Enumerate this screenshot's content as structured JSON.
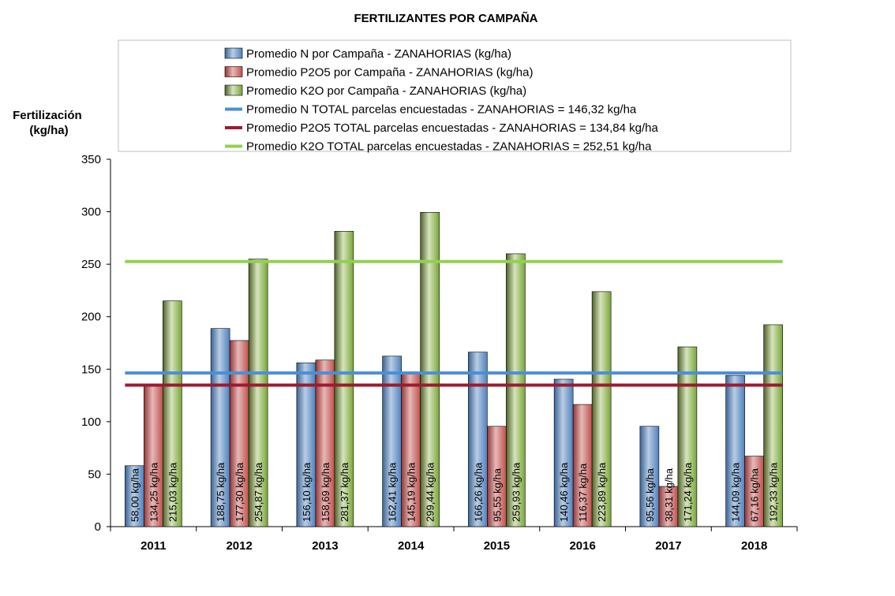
{
  "chart_data": {
    "type": "bar",
    "title": "FERTILIZANTES POR CAMPAÑA",
    "ylabel": [
      "Fertilización",
      "(kg/ha)"
    ],
    "xlabel": "",
    "ylim": [
      0,
      350
    ],
    "yticks": [
      0,
      50,
      100,
      150,
      200,
      250,
      300,
      350
    ],
    "categories": [
      "2011",
      "2012",
      "2013",
      "2014",
      "2015",
      "2016",
      "2017",
      "2018"
    ],
    "series": [
      {
        "name": "Promedio N por Campaña - ZANAHORIAS (kg/ha)",
        "color": "#4F81BD",
        "values": [
          58.0,
          188.75,
          156.1,
          162.41,
          166.26,
          140.46,
          95.56,
          144.09
        ],
        "labels": [
          "58,00 kg/ha",
          "188,75 kg/ha",
          "156,10 kg/ha",
          "162,41 kg/ha",
          "166,26 kg/ha",
          "140,46 kg/ha",
          "95,56 kg/ha",
          "144,09 kg/ha"
        ]
      },
      {
        "name": "Promedio P2O5 por Campaña - ZANAHORIAS (kg/ha)",
        "color": "#C0504D",
        "values": [
          134.25,
          177.3,
          158.69,
          145.19,
          95.55,
          116.37,
          38.31,
          67.16
        ],
        "labels": [
          "134,25 kg/ha",
          "177,30 kg/ha",
          "158,69 kg/ha",
          "145,19 kg/ha",
          "95,55 kg/ha",
          "116,37 kg/ha",
          "38,31 kg/ha",
          "67,16 kg/ha"
        ]
      },
      {
        "name": "Promedio K2O por Campaña - ZANAHORIAS (kg/ha)",
        "color": "#77A637",
        "values": [
          215.03,
          254.87,
          281.37,
          299.44,
          259.93,
          223.89,
          171.24,
          192.33
        ],
        "labels": [
          "215,03 kg/ha",
          "254,87 kg/ha",
          "281,37 kg/ha",
          "299,44 kg/ha",
          "259,93 kg/ha",
          "223,89 kg/ha",
          "171,24 kg/ha",
          "192,33 kg/ha"
        ]
      }
    ],
    "reference_lines": [
      {
        "name": "Promedio N TOTAL parcelas encuestadas - ZANAHORIAS = 146,32 kg/ha",
        "value": 146.32,
        "color": "#4A8FD6"
      },
      {
        "name": "Promedio P2O5 TOTAL parcelas encuestadas - ZANAHORIAS = 134,84 kg/ha",
        "value": 134.84,
        "color": "#9B1B30"
      },
      {
        "name": "Promedio K2O TOTAL parcelas encuestadas - ZANAHORIAS  = 252,51 kg/ha",
        "value": 252.51,
        "color": "#92D050"
      }
    ],
    "legend_position": "top",
    "grid": false
  }
}
